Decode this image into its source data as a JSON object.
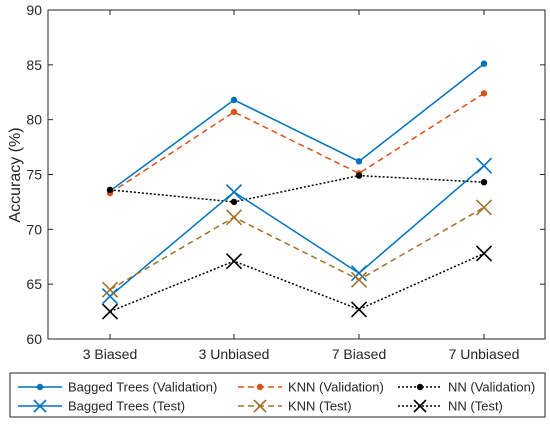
{
  "chart_data": {
    "type": "line",
    "categories": [
      "3 Biased",
      "3 Unbiased",
      "7 Biased",
      "7 Unbiased"
    ],
    "ylabel": "Accuracy (%)",
    "xlabel": "",
    "ylim": [
      60,
      90
    ],
    "yticks": [
      60,
      65,
      70,
      75,
      80,
      85,
      90
    ],
    "grid": false,
    "legend_position": "bottom",
    "series": [
      {
        "name": "Bagged Trees (Validation)",
        "values": [
          73.5,
          81.8,
          76.2,
          85.1
        ],
        "color": "#0072BD",
        "line": "solid",
        "marker": "dot"
      },
      {
        "name": "KNN (Validation)",
        "values": [
          73.3,
          80.7,
          75.1,
          82.4
        ],
        "color": "#D95319",
        "line": "dashed",
        "marker": "dot"
      },
      {
        "name": "NN (Validation)",
        "values": [
          73.6,
          72.5,
          74.9,
          74.3
        ],
        "color": "#000000",
        "line": "dotted",
        "marker": "dot"
      },
      {
        "name": "Bagged Trees (Test)",
        "values": [
          63.9,
          73.4,
          66.0,
          75.8
        ],
        "color": "#0072BD",
        "line": "solid",
        "marker": "x"
      },
      {
        "name": "KNN (Test)",
        "values": [
          64.5,
          71.1,
          65.4,
          72.0
        ],
        "color": "#A2722A",
        "line": "dashed",
        "marker": "x"
      },
      {
        "name": "NN (Test)",
        "values": [
          62.5,
          67.1,
          62.7,
          67.8
        ],
        "color": "#000000",
        "line": "dotted",
        "marker": "x"
      }
    ]
  }
}
